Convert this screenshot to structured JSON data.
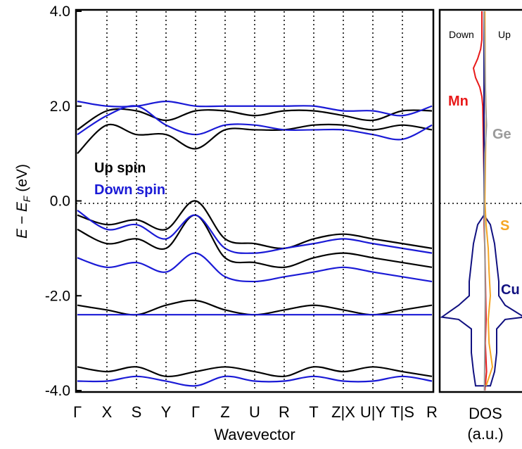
{
  "colors": {
    "up": "#000000",
    "down": "#1a1ad6",
    "mn": "#e81a1a",
    "ge": "#9a9a9a",
    "s": "#f5a623",
    "cu": "#101080"
  },
  "chart_data": [
    {
      "type": "line",
      "title": "",
      "xlabel": "Wavevector",
      "ylabel_parts": [
        "E − E",
        "F",
        " (eV)"
      ],
      "ylim": [
        -4.0,
        4.0
      ],
      "yticks": [
        -4.0,
        -2.0,
        0.0,
        2.0,
        4.0
      ],
      "ytick_labels": [
        "-4.0",
        "-2.0",
        "0.0",
        "2.0",
        "4.0"
      ],
      "kpath": [
        {
          "label": "Γ",
          "x": 0.0
        },
        {
          "label": "X",
          "x": 1.0
        },
        {
          "label": "S",
          "x": 2.0
        },
        {
          "label": "Y",
          "x": 3.0
        },
        {
          "label": "Γ",
          "x": 4.0
        },
        {
          "label": "Z",
          "x": 5.0
        },
        {
          "label": "U",
          "x": 6.0
        },
        {
          "label": "R",
          "x": 7.0
        },
        {
          "label": "T",
          "x": 8.0
        },
        {
          "label": "Z|X",
          "x": 9.0
        },
        {
          "label": "U|Y",
          "x": 10.0
        },
        {
          "label": "T|S",
          "x": 11.0
        },
        {
          "label": "R",
          "x": 12.0
        }
      ],
      "legend": [
        "Up spin",
        "Down spin"
      ],
      "fermi_level": 0.0,
      "series": [
        {
          "name": "Up spin",
          "bands_sample": [
            [
              1.0,
              1.6,
              1.4,
              1.4,
              1.1,
              1.5,
              1.5,
              1.5,
              1.6,
              1.6,
              1.5,
              1.6,
              1.5
            ],
            [
              1.5,
              1.9,
              1.9,
              1.7,
              1.9,
              1.9,
              1.8,
              1.9,
              1.9,
              1.8,
              1.7,
              1.9,
              1.9
            ],
            [
              -0.3,
              -0.5,
              -0.4,
              -0.6,
              0.0,
              -0.8,
              -0.9,
              -1.0,
              -0.8,
              -0.7,
              -0.8,
              -0.9,
              -1.0
            ],
            [
              -0.6,
              -0.9,
              -0.8,
              -1.0,
              -0.3,
              -1.2,
              -1.3,
              -1.4,
              -1.2,
              -1.1,
              -1.2,
              -1.3,
              -1.4
            ],
            [
              -2.2,
              -2.3,
              -2.4,
              -2.2,
              -2.1,
              -2.3,
              -2.4,
              -2.3,
              -2.2,
              -2.3,
              -2.4,
              -2.3,
              -2.2
            ],
            [
              -3.5,
              -3.6,
              -3.5,
              -3.7,
              -3.6,
              -3.5,
              -3.6,
              -3.7,
              -3.5,
              -3.6,
              -3.5,
              -3.6,
              -3.7
            ]
          ]
        },
        {
          "name": "Down spin",
          "bands_sample": [
            [
              1.4,
              1.8,
              2.0,
              1.6,
              1.4,
              1.6,
              1.6,
              1.5,
              1.5,
              1.5,
              1.4,
              1.3,
              1.6
            ],
            [
              2.1,
              2.0,
              2.0,
              2.1,
              2.0,
              2.0,
              2.0,
              2.0,
              2.0,
              1.9,
              1.9,
              1.8,
              2.0
            ],
            [
              -0.2,
              -0.6,
              -0.5,
              -0.8,
              -0.3,
              -1.0,
              -1.1,
              -1.0,
              -0.9,
              -0.8,
              -0.9,
              -1.0,
              -1.1
            ],
            [
              -1.2,
              -1.4,
              -1.3,
              -1.5,
              -1.1,
              -1.6,
              -1.7,
              -1.6,
              -1.5,
              -1.4,
              -1.5,
              -1.6,
              -1.7
            ],
            [
              -2.4,
              -2.4,
              -2.4,
              -2.4,
              -2.4,
              -2.4,
              -2.4,
              -2.4,
              -2.4,
              -2.4,
              -2.4,
              -2.4,
              -2.4
            ],
            [
              -3.8,
              -3.8,
              -3.7,
              -3.8,
              -3.9,
              -3.7,
              -3.8,
              -3.8,
              -3.7,
              -3.8,
              -3.8,
              -3.7,
              -3.8
            ]
          ]
        }
      ]
    },
    {
      "type": "line",
      "title": "",
      "xlabel_line1": "DOS",
      "xlabel_line2": "(a.u.)",
      "ylim": [
        -4.0,
        4.0
      ],
      "side_labels": [
        "Down",
        "Up"
      ],
      "species_labels": [
        "Mn",
        "Ge",
        "S",
        "Cu"
      ],
      "series": [
        {
          "name": "Mn",
          "points": [
            [
              -0.05,
              4.0
            ],
            [
              -0.05,
              3.4
            ],
            [
              -0.08,
              3.2
            ],
            [
              -0.15,
              3.0
            ],
            [
              -0.25,
              2.8
            ],
            [
              -0.2,
              2.6
            ],
            [
              -0.1,
              2.4
            ],
            [
              -0.05,
              2.2
            ],
            [
              -0.03,
              2.0
            ],
            [
              -0.02,
              1.5
            ],
            [
              0.0,
              0.5
            ],
            [
              0.0,
              -0.5
            ],
            [
              0.02,
              -1.0
            ],
            [
              0.04,
              -2.0
            ],
            [
              0.05,
              -2.5
            ],
            [
              0.03,
              -3.0
            ],
            [
              0.06,
              -3.6
            ],
            [
              0.02,
              -4.0
            ]
          ]
        },
        {
          "name": "Cu",
          "points": [
            [
              0.0,
              4.0
            ],
            [
              0.0,
              -0.3
            ],
            [
              -0.15,
              -0.5
            ],
            [
              -0.25,
              -0.9
            ],
            [
              -0.3,
              -1.3
            ],
            [
              -0.35,
              -1.7
            ],
            [
              -0.35,
              -2.0
            ],
            [
              -0.6,
              -2.2
            ],
            [
              -1.0,
              -2.45
            ],
            [
              -0.6,
              -2.5
            ],
            [
              -0.3,
              -2.7
            ],
            [
              -0.3,
              -3.2
            ],
            [
              -0.25,
              -3.6
            ],
            [
              -0.2,
              -3.9
            ],
            [
              0.15,
              -3.9
            ],
            [
              0.25,
              -3.6
            ],
            [
              0.3,
              -3.2
            ],
            [
              0.3,
              -2.7
            ],
            [
              0.5,
              -2.5
            ],
            [
              0.95,
              -2.45
            ],
            [
              0.5,
              -2.2
            ],
            [
              0.35,
              -2.0
            ],
            [
              0.35,
              -1.7
            ],
            [
              0.3,
              -1.3
            ],
            [
              0.25,
              -0.9
            ],
            [
              0.15,
              -0.5
            ],
            [
              0.0,
              -0.3
            ]
          ]
        },
        {
          "name": "S",
          "points": [
            [
              0.02,
              4.0
            ],
            [
              0.03,
              2.5
            ],
            [
              0.05,
              1.8
            ],
            [
              0.04,
              1.2
            ],
            [
              0.02,
              0.0
            ],
            [
              0.05,
              -0.5
            ],
            [
              0.1,
              -1.0
            ],
            [
              0.12,
              -1.5
            ],
            [
              0.15,
              -2.0
            ],
            [
              0.1,
              -2.5
            ],
            [
              0.12,
              -3.0
            ],
            [
              0.2,
              -3.5
            ],
            [
              0.05,
              -3.9
            ]
          ]
        },
        {
          "name": "Ge",
          "points": [
            [
              0.0,
              4.0
            ],
            [
              0.02,
              3.0
            ],
            [
              0.04,
              2.0
            ],
            [
              0.06,
              1.6
            ],
            [
              0.02,
              1.0
            ],
            [
              0.0,
              0.0
            ],
            [
              0.02,
              -1.0
            ],
            [
              0.03,
              -2.0
            ],
            [
              0.02,
              -3.0
            ],
            [
              0.01,
              -4.0
            ]
          ]
        }
      ]
    }
  ]
}
